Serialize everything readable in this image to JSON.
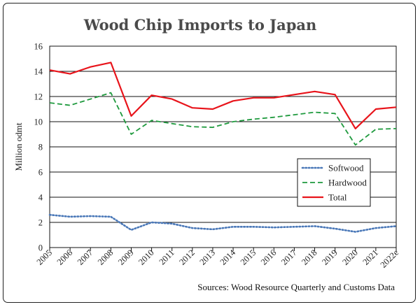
{
  "chart_data": {
    "type": "line",
    "title": "Wood Chip Imports to Japan",
    "ylabel": "Million odmt",
    "xlabel": "",
    "source": "Sources: Wood Resource Quarterly and Customs Data",
    "ylim": [
      0,
      16
    ],
    "yticks": [
      "0",
      "2",
      "4",
      "6",
      "8",
      "10",
      "12",
      "14",
      "16"
    ],
    "grid": "horizontal",
    "legend_position": "middle-right",
    "categories": [
      "2005",
      "2006",
      "2007",
      "2008",
      "2009",
      "2010",
      "2011",
      "2012",
      "2013",
      "2014",
      "2015",
      "2016",
      "2017",
      "2018",
      "2019",
      "2020",
      "2021",
      "2022e"
    ],
    "series": [
      {
        "name": "Softwood",
        "style": "dotted",
        "color": "#4a78b8",
        "values": [
          2.6,
          2.45,
          2.5,
          2.45,
          1.4,
          2.0,
          1.9,
          1.55,
          1.45,
          1.65,
          1.65,
          1.6,
          1.65,
          1.7,
          1.5,
          1.25,
          1.55,
          1.7
        ]
      },
      {
        "name": "Hardwood",
        "style": "dashed",
        "color": "#1f9a3e",
        "values": [
          11.5,
          11.3,
          11.8,
          12.3,
          9.0,
          10.1,
          9.85,
          9.6,
          9.55,
          10.0,
          10.2,
          10.35,
          10.55,
          10.75,
          10.65,
          8.15,
          9.4,
          9.45
        ]
      },
      {
        "name": "Total",
        "style": "solid",
        "color": "#e8141b",
        "values": [
          14.1,
          13.8,
          14.35,
          14.7,
          10.45,
          12.1,
          11.8,
          11.1,
          11.0,
          11.65,
          11.9,
          11.9,
          12.15,
          12.4,
          12.15,
          9.45,
          11.0,
          11.15
        ]
      }
    ]
  }
}
